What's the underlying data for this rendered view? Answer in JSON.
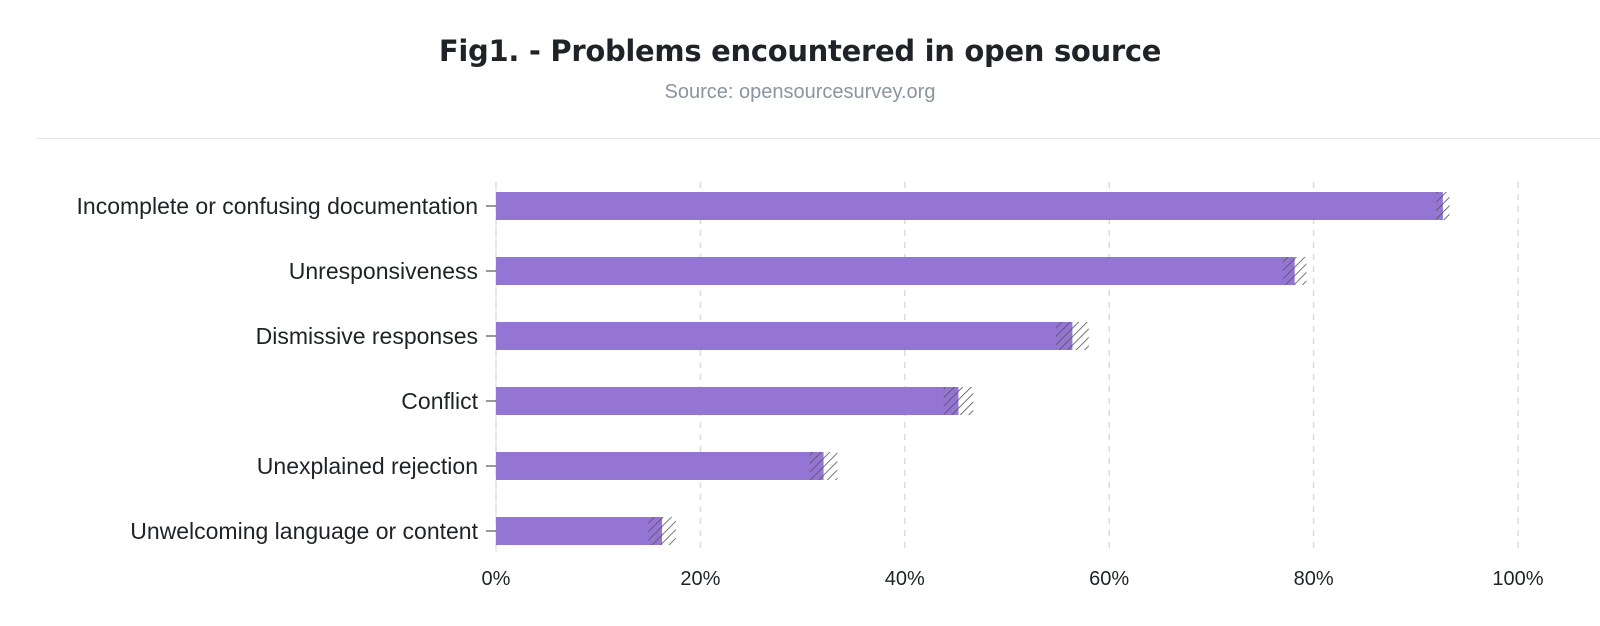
{
  "header": {
    "title": "Fig1. - Problems encountered in open source",
    "subtitle": "Source: opensourcesurvey.org"
  },
  "colors": {
    "bar": "#9575d4",
    "hatch": "#555555",
    "grid": "#d9dce0",
    "axis": "#555555"
  },
  "chart_data": {
    "type": "bar",
    "orientation": "horizontal",
    "categories": [
      "Incomplete or confusing documentation",
      "Unresponsiveness",
      "Dismissive responses",
      "Conflict",
      "Unexplained rejection",
      "Unwelcoming language or content"
    ],
    "values": [
      93,
      79,
      58,
      47,
      33,
      17
    ],
    "uncertainty": [
      [
        92,
        93.3
      ],
      [
        77,
        79.3
      ],
      [
        54.8,
        58
      ],
      [
        43.8,
        46.7
      ],
      [
        30.7,
        33.4
      ],
      [
        14.9,
        17.6
      ]
    ],
    "xlim": [
      0,
      100
    ],
    "xticks": [
      "0%",
      "20%",
      "40%",
      "60%",
      "80%",
      "100%"
    ],
    "tick_values": [
      0,
      20,
      40,
      60,
      80,
      100
    ],
    "grid": "vertical dashed",
    "legend": "none"
  }
}
